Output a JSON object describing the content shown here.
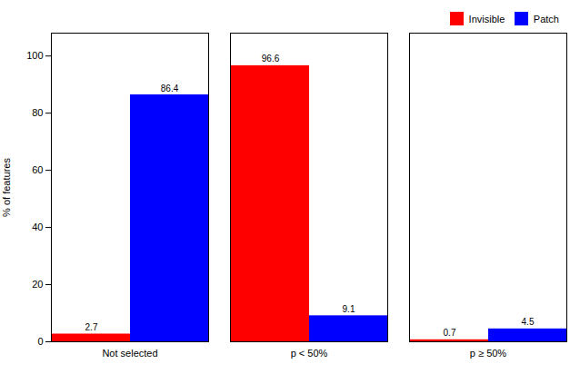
{
  "chart_data": {
    "type": "bar",
    "categories": [
      "Not selected",
      "p < 50%",
      "p ≥ 50%"
    ],
    "series": [
      {
        "name": "Invisible",
        "color": "#ff0000",
        "values": [
          2.7,
          96.6,
          0.7
        ]
      },
      {
        "name": "Patch",
        "color": "#0000ff",
        "values": [
          86.4,
          9.1,
          4.5
        ]
      }
    ],
    "ylabel": "% of features",
    "ylim": [
      0,
      108
    ],
    "yticks": [
      0,
      20,
      40,
      60,
      80,
      100
    ],
    "legend": "upper right",
    "data_labels": true
  }
}
